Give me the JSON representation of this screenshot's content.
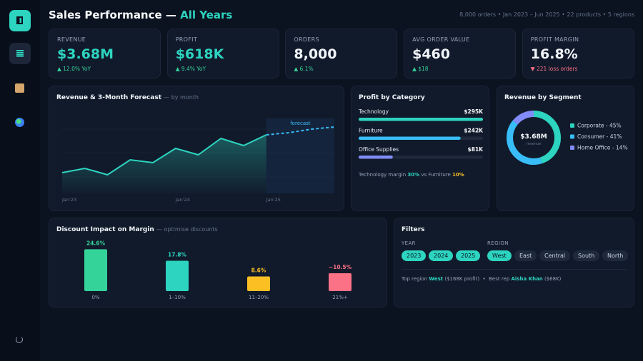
{
  "header": {
    "title": "Sales Performance —",
    "highlight": "All Years",
    "meta": "8,000 orders • Jan 2023 – Jun 2025 • 22 products • 5 regions"
  },
  "kpis": [
    {
      "label": "REVENUE",
      "value": "$3.68M",
      "delta": "12.0% YoY",
      "trend": "up",
      "color": "#2dd4bf"
    },
    {
      "label": "PROFIT",
      "value": "$618K",
      "delta": "9.4% YoY",
      "trend": "up",
      "color": "#2dd4bf"
    },
    {
      "label": "ORDERS",
      "value": "8,000",
      "delta": "6.1%",
      "trend": "up",
      "color": "#f1f5f9"
    },
    {
      "label": "AVG ORDER VALUE",
      "value": "$460",
      "delta": "$18",
      "trend": "up",
      "color": "#f1f5f9"
    },
    {
      "label": "PROFIT MARGIN",
      "value": "16.8%",
      "delta": "221 loss orders",
      "trend": "down",
      "color": "#f1f5f9"
    }
  ],
  "chart_data": [
    {
      "type": "line",
      "title": "Revenue & 3-Month Forecast",
      "subtitle": "— by month",
      "annotation": "forecast",
      "categories": [
        "Jan'23",
        null,
        null,
        null,
        null,
        "Jan'24",
        null,
        null,
        null,
        "Jan'25",
        null,
        null,
        null
      ],
      "series": [
        {
          "color": "#2dd4bf",
          "values": [
            58,
            70,
            52,
            94,
            86,
            126,
            108,
            154,
            134,
            164,
            null,
            null,
            null
          ]
        },
        {
          "color": "#38bdf8",
          "dashed": true,
          "values": [
            null,
            null,
            null,
            null,
            null,
            null,
            null,
            null,
            null,
            164,
            170,
            180,
            186
          ]
        }
      ],
      "ylim": [
        0,
        220
      ]
    },
    {
      "type": "hbar",
      "title": "Profit by Category",
      "categories": [
        "Technology",
        "Furniture",
        "Office Supplies"
      ],
      "values": [
        295,
        242,
        81
      ],
      "value_labels": [
        "$295K",
        "$242K",
        "$81K"
      ],
      "colors": [
        "#2dd4bf",
        "#38bdf8",
        "#818cf8"
      ],
      "xlim": [
        0,
        295
      ],
      "note": [
        {
          "text": "Technology margin "
        },
        {
          "text": "30%",
          "color": "#2dd4bf"
        },
        {
          "text": " vs Furniture "
        },
        {
          "text": "10%",
          "color": "#fbbf24"
        }
      ]
    },
    {
      "type": "donut",
      "title": "Revenue by Segment",
      "center_value": "$3.68M",
      "center_label": "revenue",
      "categories": [
        "Corporate",
        "Consumer",
        "Home Office"
      ],
      "values": [
        45,
        41,
        14
      ],
      "value_labels": [
        "45%",
        "41%",
        "14%"
      ],
      "colors": [
        "#2dd4bf",
        "#38bdf8",
        "#818cf8"
      ]
    },
    {
      "type": "bar",
      "title": "Discount Impact on Margin",
      "subtitle": "— optimise discounts",
      "categories": [
        "0%",
        "1–10%",
        "11–20%",
        "21%+"
      ],
      "values": [
        24.6,
        17.8,
        8.6,
        -10.5
      ],
      "value_labels": [
        "24.6%",
        "17.8%",
        "8.6%",
        "−10.5%"
      ],
      "colors": [
        "#34d399",
        "#2dd4bf",
        "#fbbf24",
        "#fb7185"
      ],
      "ylim": [
        0,
        26
      ]
    }
  ],
  "filters": {
    "title": "Filters",
    "groups": [
      {
        "label": "YEAR",
        "options": [
          {
            "label": "2023",
            "active": true
          },
          {
            "label": "2024",
            "active": true
          },
          {
            "label": "2025",
            "active": true
          }
        ]
      },
      {
        "label": "REGION",
        "options": [
          {
            "label": "West",
            "active": true
          },
          {
            "label": "East",
            "active": false
          },
          {
            "label": "Central",
            "active": false
          },
          {
            "label": "South",
            "active": false
          },
          {
            "label": "North",
            "active": false
          }
        ]
      }
    ],
    "summary": [
      {
        "text": "Top region "
      },
      {
        "text": "West",
        "color": "#2dd4bf"
      },
      {
        "text": " ($168K profit)  •  Best rep "
      },
      {
        "text": "Aisha Khan",
        "color": "#2dd4bf"
      },
      {
        "text": " ($68K)"
      }
    ]
  }
}
